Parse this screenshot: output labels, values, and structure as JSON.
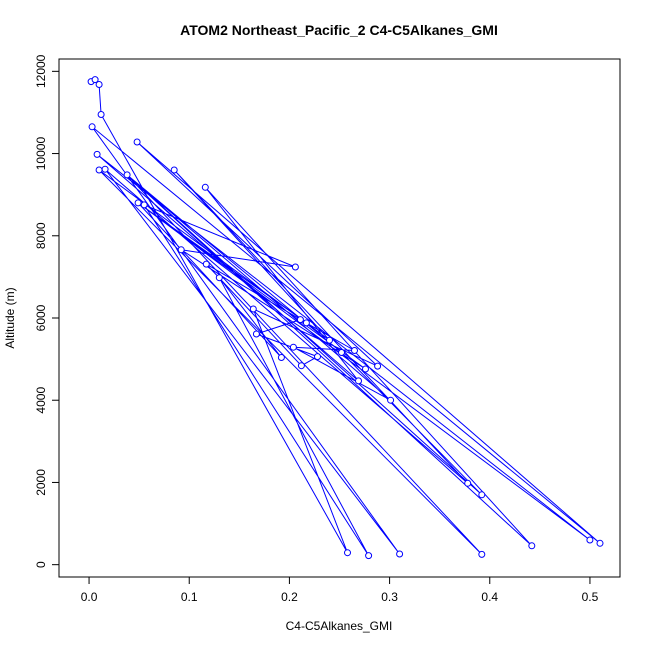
{
  "chart_data": {
    "type": "line",
    "title": "ATOM2 Northeast_Pacific_2 C4-C5Alkanes_GMI",
    "xlabel": "C4-C5Alkanes_GMI",
    "ylabel": "Altitude (m)",
    "xlim": [
      -0.03,
      0.53
    ],
    "ylim": [
      -300,
      12300
    ],
    "x_ticks": [
      0.0,
      0.1,
      0.2,
      0.3,
      0.4,
      0.5
    ],
    "x_tick_labels": [
      "0.0",
      "0.1",
      "0.2",
      "0.3",
      "0.4",
      "0.5"
    ],
    "y_ticks": [
      0,
      2000,
      4000,
      6000,
      8000,
      10000,
      12000
    ],
    "y_tick_labels": [
      "0",
      "2000",
      "4000",
      "6000",
      "8000",
      "10000",
      "12000"
    ],
    "grid": false,
    "series": [
      {
        "color": "#0000ff",
        "marker": "open-circle",
        "points": [
          [
            0.002,
            11750
          ],
          [
            0.006,
            11800
          ],
          [
            0.01,
            11680
          ],
          [
            0.012,
            10950
          ],
          [
            0.003,
            10650
          ],
          [
            0.048,
            10280
          ],
          [
            0.008,
            9980
          ],
          [
            0.085,
            9600
          ],
          [
            0.01,
            9600
          ],
          [
            0.016,
            9620
          ],
          [
            0.038,
            9480
          ],
          [
            0.116,
            9180
          ],
          [
            0.049,
            8800
          ],
          [
            0.055,
            8750
          ],
          [
            0.092,
            7660
          ],
          [
            0.206,
            7240
          ],
          [
            0.117,
            7310
          ],
          [
            0.13,
            6980
          ],
          [
            0.164,
            6220
          ],
          [
            0.211,
            5960
          ],
          [
            0.217,
            5880
          ],
          [
            0.167,
            5610
          ],
          [
            0.24,
            5460
          ],
          [
            0.265,
            5210
          ],
          [
            0.252,
            5160
          ],
          [
            0.204,
            5290
          ],
          [
            0.192,
            5040
          ],
          [
            0.228,
            5060
          ],
          [
            0.288,
            4830
          ],
          [
            0.212,
            4840
          ],
          [
            0.276,
            4760
          ],
          [
            0.269,
            4470
          ],
          [
            0.301,
            4000
          ],
          [
            0.378,
            1980
          ],
          [
            0.392,
            1700
          ],
          [
            0.5,
            600
          ],
          [
            0.51,
            520
          ],
          [
            0.442,
            460
          ],
          [
            0.258,
            290
          ],
          [
            0.279,
            220
          ],
          [
            0.31,
            260
          ],
          [
            0.392,
            250
          ]
        ],
        "path": [
          [
            0.01,
            11680
          ],
          [
            0.012,
            10950
          ],
          [
            0.258,
            290
          ],
          [
            0.164,
            6220
          ],
          [
            0.288,
            4830
          ],
          [
            0.048,
            10280
          ],
          [
            0.51,
            520
          ],
          [
            0.003,
            10650
          ],
          [
            0.31,
            260
          ],
          [
            0.016,
            9620
          ],
          [
            0.378,
            1980
          ],
          [
            0.085,
            9600
          ],
          [
            0.24,
            5460
          ],
          [
            0.01,
            9600
          ],
          [
            0.392,
            250
          ],
          [
            0.038,
            9480
          ],
          [
            0.442,
            460
          ],
          [
            0.116,
            9180
          ],
          [
            0.269,
            4470
          ],
          [
            0.008,
            9980
          ],
          [
            0.5,
            600
          ],
          [
            0.049,
            8800
          ],
          [
            0.276,
            4760
          ],
          [
            0.092,
            7660
          ],
          [
            0.206,
            7240
          ],
          [
            0.055,
            8750
          ],
          [
            0.279,
            220
          ],
          [
            0.13,
            6980
          ],
          [
            0.192,
            5040
          ],
          [
            0.049,
            8800
          ],
          [
            0.217,
            5880
          ],
          [
            0.117,
            7310
          ],
          [
            0.212,
            4840
          ],
          [
            0.228,
            5060
          ],
          [
            0.167,
            5610
          ],
          [
            0.211,
            5960
          ],
          [
            0.265,
            5210
          ],
          [
            0.204,
            5290
          ],
          [
            0.301,
            4000
          ],
          [
            0.038,
            9480
          ],
          [
            0.392,
            1700
          ],
          [
            0.252,
            5160
          ],
          [
            0.038,
            9480
          ]
        ]
      }
    ]
  }
}
